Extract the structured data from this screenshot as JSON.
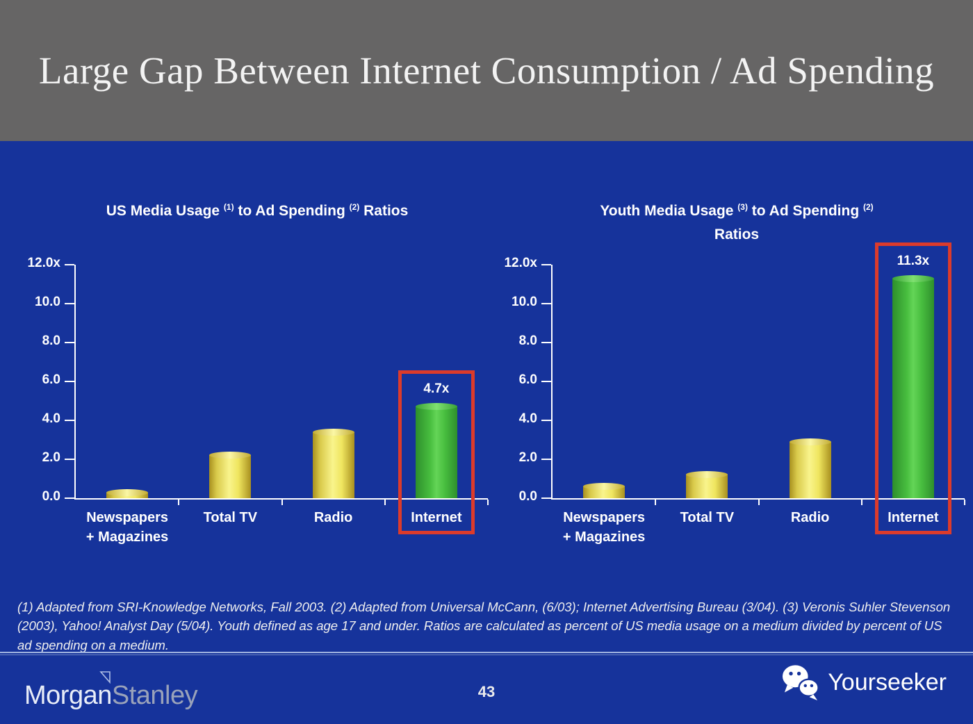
{
  "slide": {
    "title": "Large Gap Between Internet Consumption / Ad Spending",
    "page_number": "43",
    "footnote": "(1) Adapted from SRI-Knowledge Networks, Fall 2003.  (2) Adapted from Universal McCann, (6/03); Internet Advertising Bureau (3/04). (3) Veronis Suhler Stevenson (2003), Yahoo! Analyst Day (5/04).  Youth defined as age 17 and under.  Ratios are calculated as percent of US media usage on a medium divided by percent of US ad spending on a medium.",
    "brand_left": {
      "part1": "Morgan",
      "part2": "Stanley",
      "icon": "morgan-stanley-flag-icon"
    },
    "brand_right": {
      "label": "Yourseeker",
      "icon": "wechat-icon"
    }
  },
  "colors": {
    "background_blue": "#16339B",
    "header_gray": "#666565",
    "bar_yellow": "#F0E55F",
    "bar_green": "#48BE3F",
    "highlight_red": "#DC3B2B",
    "axis_white": "#FFFFFF"
  },
  "chart_data": [
    {
      "type": "bar",
      "title_segments": [
        {
          "text": "US Media Usage "
        },
        {
          "sup": "(1)"
        },
        {
          "text": " to Ad Spending "
        },
        {
          "sup": "(2)"
        },
        {
          "text": " Ratios"
        }
      ],
      "categories": [
        [
          "Newspapers",
          "+ Magazines"
        ],
        [
          "Total TV"
        ],
        [
          "Radio"
        ],
        [
          "Internet"
        ]
      ],
      "values": [
        0.3,
        2.2,
        3.4,
        4.7
      ],
      "bar_colors": [
        "yellow",
        "yellow",
        "yellow",
        "green"
      ],
      "value_labels": [
        null,
        null,
        null,
        "4.7x"
      ],
      "highlight_index": 3,
      "y_ticks": [
        "12.0x",
        "10.0",
        "8.0",
        "6.0",
        "4.0",
        "2.0",
        "0.0"
      ],
      "ylim": [
        0,
        12
      ],
      "grid": false,
      "legend": false
    },
    {
      "type": "bar",
      "title_segments": [
        {
          "text": "Youth Media Usage "
        },
        {
          "sup": "(3)"
        },
        {
          "text": " to Ad Spending "
        },
        {
          "sup": "(2)"
        },
        {
          "br": true
        },
        {
          "text": "Ratios"
        }
      ],
      "categories": [
        [
          "Newspapers",
          "+ Magazines"
        ],
        [
          "Total TV"
        ],
        [
          "Radio"
        ],
        [
          "Internet"
        ]
      ],
      "values": [
        0.6,
        1.2,
        2.9,
        11.3
      ],
      "bar_colors": [
        "yellow",
        "yellow",
        "yellow",
        "green"
      ],
      "value_labels": [
        null,
        null,
        null,
        "11.3x"
      ],
      "highlight_index": 3,
      "y_ticks": [
        "12.0x",
        "10.0",
        "8.0",
        "6.0",
        "4.0",
        "2.0",
        "0.0"
      ],
      "ylim": [
        0,
        12
      ],
      "grid": false,
      "legend": false
    }
  ]
}
